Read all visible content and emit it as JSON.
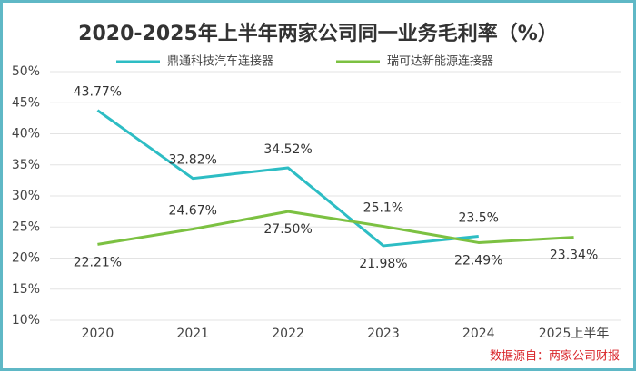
{
  "chart_data": {
    "type": "line",
    "title": "2020-2025年上半年两家公司同一业务毛利率（%）",
    "categories": [
      "2020",
      "2021",
      "2022",
      "2023",
      "2024",
      "2025上半年"
    ],
    "series": [
      {
        "name": "鼎通科技汽车连接器",
        "color": "#2dbdc4",
        "values": [
          43.77,
          32.82,
          34.52,
          21.98,
          23.5,
          null
        ],
        "value_labels": [
          "43.77%",
          "32.82%",
          "34.52%",
          "21.98%",
          "23.5%",
          null
        ]
      },
      {
        "name": "瑞可达新能源连接器",
        "color": "#7cc142",
        "values": [
          22.21,
          24.67,
          27.5,
          25.1,
          22.49,
          23.34
        ],
        "value_labels": [
          "22.21%",
          "24.67%",
          "27.50%",
          "25.1%",
          "22.49%",
          "23.34%"
        ]
      }
    ],
    "ylim": [
      10,
      50
    ],
    "yticks": [
      {
        "value": 10,
        "label": "10%"
      },
      {
        "value": 15,
        "label": "15%"
      },
      {
        "value": 20,
        "label": "20%"
      },
      {
        "value": 25,
        "label": "25%"
      },
      {
        "value": 30,
        "label": "30%"
      },
      {
        "value": 35,
        "label": "35%"
      },
      {
        "value": 40,
        "label": "40%"
      },
      {
        "value": 45,
        "label": "45%"
      },
      {
        "value": 50,
        "label": "50%"
      }
    ],
    "grid": true,
    "source": "数据源自：两家公司财报"
  }
}
